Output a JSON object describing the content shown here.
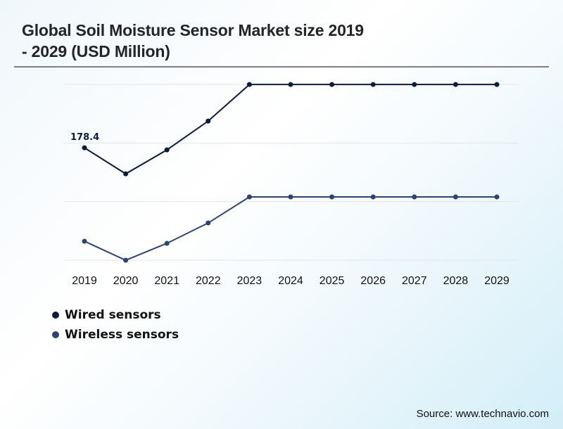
{
  "header": {
    "title_line1": "Global Soil Moisture Sensor Market size 2019",
    "title_line2": "- 2029 (USD Million)"
  },
  "source": "Source: www.technavio.com",
  "chart_data": {
    "type": "line",
    "title": "Global Soil Moisture Sensor Market size 2019 - 2029 (USD Million)",
    "xlabel": "",
    "ylabel": "USD Million",
    "x": [
      "2019",
      "2020",
      "2021",
      "2022",
      "2023",
      "2024",
      "2025",
      "2026",
      "2027",
      "2028",
      "2029"
    ],
    "ylim": [
      0,
      279
    ],
    "grid": true,
    "gridline_count": 4,
    "y_tick_labels_visible": false,
    "legend_position": "bottom-left",
    "series": [
      {
        "name": "Wired sensors",
        "color": "#0d1b3e",
        "values": [
          178.4,
          137.1,
          175.1,
          220.8,
          278.8,
          278.8,
          278.8,
          278.8,
          278.8,
          278.8,
          278.8
        ]
      },
      {
        "name": "Wireless sensors",
        "color": "#2e4373",
        "values": [
          30.1,
          0,
          26.8,
          59.1,
          100.4,
          100.4,
          100.4,
          100.4,
          100.4,
          100.4,
          100.4
        ]
      }
    ],
    "annotations": [
      {
        "series": "Wired sensors",
        "x": "2019",
        "text": "178.4"
      }
    ]
  }
}
